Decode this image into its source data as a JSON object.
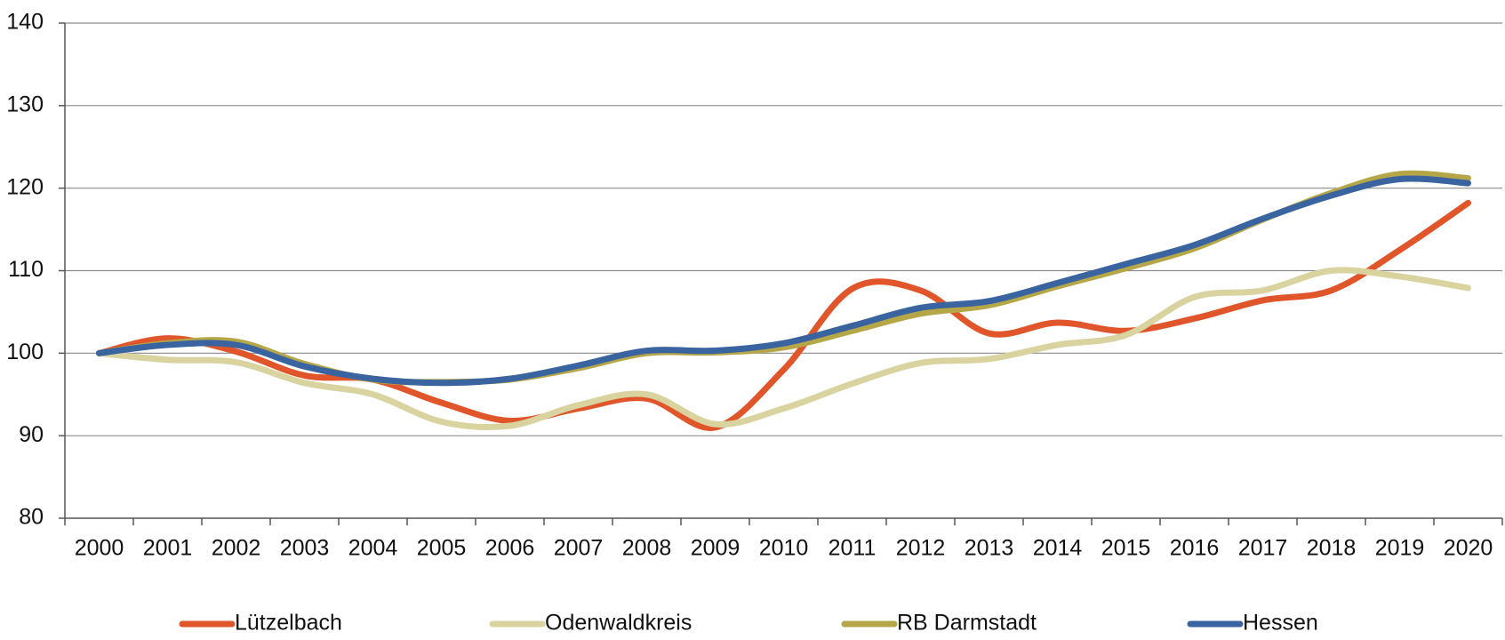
{
  "chart_data": {
    "type": "line",
    "categories": [
      "2000",
      "2001",
      "2002",
      "2003",
      "2004",
      "2005",
      "2006",
      "2007",
      "2008",
      "2009",
      "2010",
      "2011",
      "2012",
      "2013",
      "2014",
      "2015",
      "2016",
      "2017",
      "2018",
      "2019",
      "2020"
    ],
    "series": [
      {
        "name": "Lützelbach",
        "color": "#e0562a",
        "values": [
          100,
          101.8,
          100.2,
          97.3,
          96.8,
          94,
          91.8,
          93.3,
          94.5,
          91,
          98,
          107.8,
          107.6,
          102.4,
          103.7,
          102.7,
          104.2,
          106.4,
          107.6,
          112.5,
          118.2
        ]
      },
      {
        "name": "Odenwaldkreis",
        "color": "#d9d3a0",
        "values": [
          100,
          99.2,
          98.9,
          96.4,
          95,
          91.7,
          91.2,
          93.7,
          95,
          91.4,
          93.3,
          96.3,
          98.8,
          99.3,
          101,
          102.2,
          106.8,
          107.6,
          110,
          109.3,
          107.9
        ]
      },
      {
        "name": "RB Darmstadt",
        "color": "#b5a748",
        "values": [
          100,
          101.2,
          101.4,
          98.7,
          96.8,
          96.5,
          96.8,
          98.2,
          100,
          100.1,
          100.7,
          102.7,
          104.8,
          105.8,
          108.1,
          110.3,
          112.7,
          116.2,
          119.4,
          121.7,
          121.2
        ]
      },
      {
        "name": "Hessen",
        "color": "#3a64a0",
        "values": [
          100,
          101,
          101,
          98.4,
          96.9,
          96.4,
          96.9,
          98.5,
          100.3,
          100.3,
          101.2,
          103.3,
          105.5,
          106.3,
          108.5,
          110.8,
          113.1,
          116.3,
          119.1,
          121.1,
          120.6
        ]
      }
    ],
    "ylim": [
      80,
      140
    ],
    "yticks": [
      80,
      90,
      100,
      110,
      120,
      130,
      140
    ],
    "grid": true,
    "legend": "bottom"
  }
}
